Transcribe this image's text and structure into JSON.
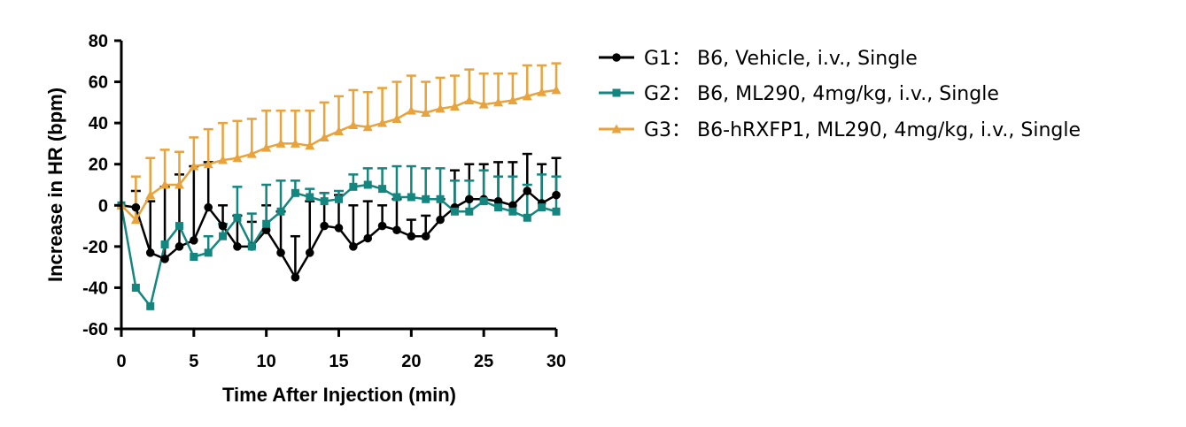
{
  "chart_data": {
    "type": "line",
    "title": "",
    "xlabel": "Time After Injection (min)",
    "ylabel": "Increase in HR (bpm)",
    "xlim": [
      0,
      30
    ],
    "ylim": [
      -60,
      80
    ],
    "xticks": [
      0,
      5,
      10,
      15,
      20,
      25,
      30
    ],
    "yticks": [
      -60,
      -40,
      -20,
      0,
      20,
      40,
      60,
      80
    ],
    "x": [
      0,
      1,
      2,
      3,
      4,
      5,
      6,
      7,
      8,
      9,
      10,
      11,
      12,
      13,
      14,
      15,
      16,
      17,
      18,
      19,
      20,
      21,
      22,
      23,
      24,
      25,
      26,
      27,
      28,
      29,
      30
    ],
    "series": [
      {
        "name": "G1: B6, Vehicle, i.v., Single",
        "legend_label": "G1： B6,  Vehicle,  i.v.,  Single",
        "color": "#000000",
        "marker": "circle",
        "values": [
          0,
          -1,
          -23,
          -26,
          -20,
          -17,
          -1,
          -10,
          -20,
          -20,
          -12,
          -23,
          -35,
          -23,
          -10,
          -11,
          -20,
          -16,
          -10,
          -12,
          -15,
          -15,
          -7,
          -1,
          3,
          3,
          2,
          0,
          7,
          1,
          5
        ],
        "errors": [
          0,
          8,
          25,
          35,
          35,
          36,
          22,
          10,
          15,
          12,
          12,
          20,
          20,
          25,
          16,
          16,
          20,
          18,
          10,
          15,
          8,
          10,
          10,
          18,
          17,
          17,
          19,
          21,
          18,
          19,
          18
        ]
      },
      {
        "name": "G2: B6, ML290, 4mg/kg, i.v., Single",
        "legend_label": "G2： B6,  ML290,  4mg/kg,  i.v.,  Single",
        "color": "#13867f",
        "marker": "square",
        "values": [
          0,
          -40,
          -49,
          -19,
          -10,
          -25,
          -23,
          -15,
          -6,
          -20,
          -9,
          -3,
          6,
          4,
          2,
          3,
          9,
          10,
          8,
          4,
          4,
          3,
          3,
          -3,
          -3,
          2,
          -1,
          -3,
          -6,
          -1,
          -3
        ],
        "errors": [
          0,
          0,
          0,
          0,
          0,
          0,
          8,
          6,
          15,
          16,
          19,
          15,
          6,
          4,
          4,
          4,
          6,
          8,
          10,
          15,
          15,
          15,
          15,
          15,
          15,
          15,
          15,
          17,
          16,
          16,
          17
        ]
      },
      {
        "name": "G3: B6-hRXFP1, ML290, 4mg/kg, i.v., Single",
        "legend_label": "G3： B6-hRXFP1,  ML290,  4mg/kg,  i.v.,  Single",
        "color": "#e8a33d",
        "marker": "triangle",
        "values": [
          0,
          -7,
          5,
          10,
          10,
          19,
          20,
          22,
          23,
          25,
          28,
          30,
          30,
          29,
          33,
          36,
          39,
          38,
          40,
          42,
          46,
          45,
          47,
          48,
          51,
          49,
          50,
          51,
          53,
          55,
          56
        ],
        "errors": [
          0,
          21,
          18,
          17,
          16,
          14,
          17,
          18,
          18,
          17,
          18,
          16,
          16,
          17,
          17,
          17,
          17,
          17,
          17,
          18,
          17,
          15,
          15,
          15,
          15,
          15,
          14,
          13,
          15,
          13,
          13
        ]
      }
    ],
    "legend_position": "right"
  }
}
